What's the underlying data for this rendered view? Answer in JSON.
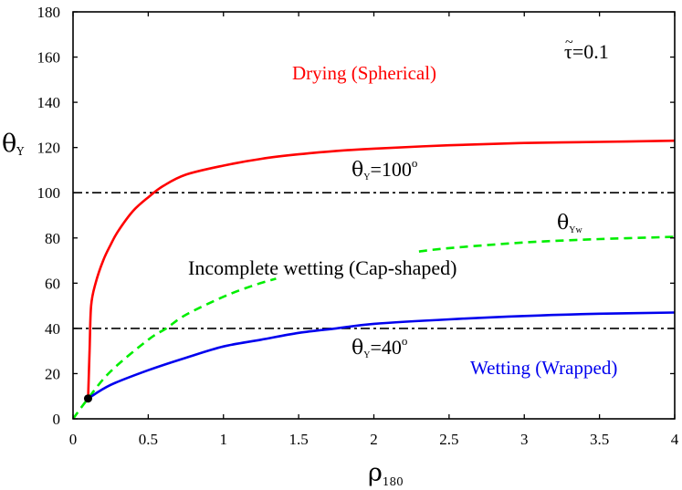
{
  "chart_data": {
    "type": "line",
    "title": "",
    "xlabel": "ρ",
    "xlabel_sub": "180",
    "ylabel": "θ",
    "ylabel_sub": "Y",
    "xlim": [
      0,
      4
    ],
    "ylim": [
      0,
      180
    ],
    "grid": false,
    "legend": null,
    "x_ticks": [
      0,
      0.5,
      1,
      1.5,
      2,
      2.5,
      3,
      3.5,
      4
    ],
    "x_tick_labels": [
      "0",
      "0.5",
      "1",
      "1.5",
      "2",
      "2.5",
      "3",
      "3.5",
      "4"
    ],
    "y_ticks": [
      0,
      20,
      40,
      60,
      80,
      100,
      120,
      140,
      160,
      180
    ],
    "y_tick_labels": [
      "0",
      "20",
      "40",
      "60",
      "80",
      "100",
      "120",
      "140",
      "160",
      "180"
    ],
    "series": [
      {
        "name": "Drying boundary",
        "color": "#ff0000",
        "style": "solid",
        "x": [
          0.1,
          0.11,
          0.12,
          0.15,
          0.2,
          0.25,
          0.3,
          0.4,
          0.5,
          0.6,
          0.75,
          1.0,
          1.25,
          1.5,
          1.75,
          2.0,
          2.5,
          3.0,
          3.5,
          4.0
        ],
        "values": [
          9,
          30,
          50,
          60,
          70,
          77,
          83,
          92,
          98,
          103,
          108,
          112,
          115,
          117,
          118.5,
          119.5,
          121,
          122,
          122.5,
          123
        ]
      },
      {
        "name": "θYw",
        "color": "#00ee00",
        "style": "dashed",
        "x": [
          0,
          0.1,
          0.25,
          0.5,
          0.62,
          0.75,
          1.0,
          1.2,
          1.35
        ],
        "values": [
          0,
          9,
          21,
          35,
          40,
          46,
          54,
          59,
          62
        ],
        "x_tail": [
          2.3,
          2.5,
          3.0,
          3.5,
          4.0
        ],
        "values_tail": [
          74,
          75.5,
          78,
          79.5,
          80.5
        ]
      },
      {
        "name": "Wetting boundary",
        "color": "#0000ee",
        "style": "solid",
        "x": [
          0.1,
          0.25,
          0.5,
          0.75,
          1.0,
          1.25,
          1.5,
          1.75,
          2.0,
          2.5,
          3.0,
          3.5,
          4.0
        ],
        "values": [
          9,
          15,
          21.5,
          27,
          32,
          35,
          38,
          40,
          42,
          44,
          45.5,
          46.5,
          47
        ]
      },
      {
        "name": "θY=100° reference",
        "color": "#000000",
        "style": "dashdot",
        "x": [
          0,
          4
        ],
        "values": [
          100,
          100
        ]
      },
      {
        "name": "θY=40° reference",
        "color": "#000000",
        "style": "dashdot",
        "x": [
          0,
          4
        ],
        "values": [
          40,
          40
        ]
      }
    ],
    "points": [
      {
        "name": "triple-point",
        "x": 0.1,
        "y": 9,
        "color": "#000000"
      }
    ],
    "annotations": [
      {
        "id": "drying",
        "text": "Drying (Spherical)",
        "color": "#ff0000",
        "x": 1.6,
        "y": 152
      },
      {
        "id": "tau",
        "text": "τ̃=0.1",
        "main": "τ",
        "rest": "=0.1",
        "color": "#000000",
        "x": 3.3,
        "y": 160
      },
      {
        "id": "theta100",
        "main": "θ",
        "sub": "Y",
        "rest": "=100",
        "sup": "o",
        "color": "#000000",
        "x": 1.9,
        "y": 105
      },
      {
        "id": "thetaYw",
        "main": "θ",
        "sub": "Yw",
        "color": "#000000",
        "x": 3.1,
        "y": 87
      },
      {
        "id": "incomplete",
        "text": "Incomplete wetting (Cap-shaped)",
        "color": "#000000",
        "x": 1.4,
        "y": 66
      },
      {
        "id": "theta40",
        "main": "θ",
        "sub": "Y",
        "rest": "=40",
        "sup": "o",
        "color": "#000000",
        "x": 1.9,
        "y": 26
      },
      {
        "id": "wetting",
        "text": "Wetting (Wrapped)",
        "color": "#0000ee",
        "x": 3.0,
        "y": 20
      }
    ]
  }
}
